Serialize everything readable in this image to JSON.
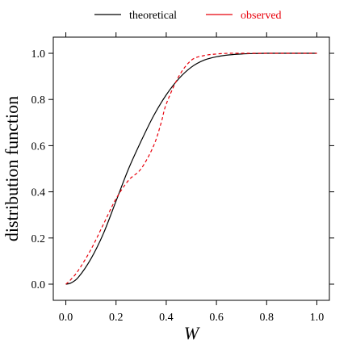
{
  "chart_data": {
    "type": "line",
    "title": "",
    "xlabel": "W",
    "ylabel": "distribution function",
    "xlim": [
      -0.05,
      1.05
    ],
    "ylim": [
      -0.07,
      1.07
    ],
    "xticks": [
      0.0,
      0.2,
      0.4,
      0.6,
      0.8,
      1.0
    ],
    "xtick_labels": [
      "0.0",
      "0.2",
      "0.4",
      "0.6",
      "0.8",
      "1.0"
    ],
    "yticks": [
      0.0,
      0.2,
      0.4,
      0.6,
      0.8,
      1.0
    ],
    "ytick_labels": [
      "0.0",
      "0.2",
      "0.4",
      "0.6",
      "0.8",
      "1.0"
    ],
    "legend_position": "top",
    "grid": false,
    "series": [
      {
        "name": "theoretical",
        "color": "#000000",
        "dash": "solid",
        "x": [
          0.0,
          0.02,
          0.05,
          0.1,
          0.15,
          0.2,
          0.25,
          0.3,
          0.35,
          0.4,
          0.45,
          0.5,
          0.55,
          0.6,
          0.65,
          0.7,
          0.75,
          0.8,
          0.9,
          1.0
        ],
        "y": [
          0.0,
          0.005,
          0.03,
          0.11,
          0.22,
          0.36,
          0.5,
          0.62,
          0.73,
          0.82,
          0.89,
          0.94,
          0.97,
          0.985,
          0.993,
          0.997,
          0.999,
          1.0,
          1.0,
          1.0
        ]
      },
      {
        "name": "observed",
        "color": "#e8000b",
        "dash": "dashed",
        "x": [
          0.0,
          0.02,
          0.05,
          0.1,
          0.15,
          0.2,
          0.25,
          0.3,
          0.35,
          0.38,
          0.4,
          0.45,
          0.5,
          0.55,
          0.6,
          0.65,
          0.7,
          0.8,
          0.9,
          1.0
        ],
        "y": [
          0.0,
          0.02,
          0.06,
          0.15,
          0.26,
          0.37,
          0.45,
          0.5,
          0.6,
          0.7,
          0.78,
          0.9,
          0.97,
          0.99,
          0.997,
          1.0,
          1.0,
          1.0,
          1.0,
          1.0
        ]
      }
    ]
  }
}
